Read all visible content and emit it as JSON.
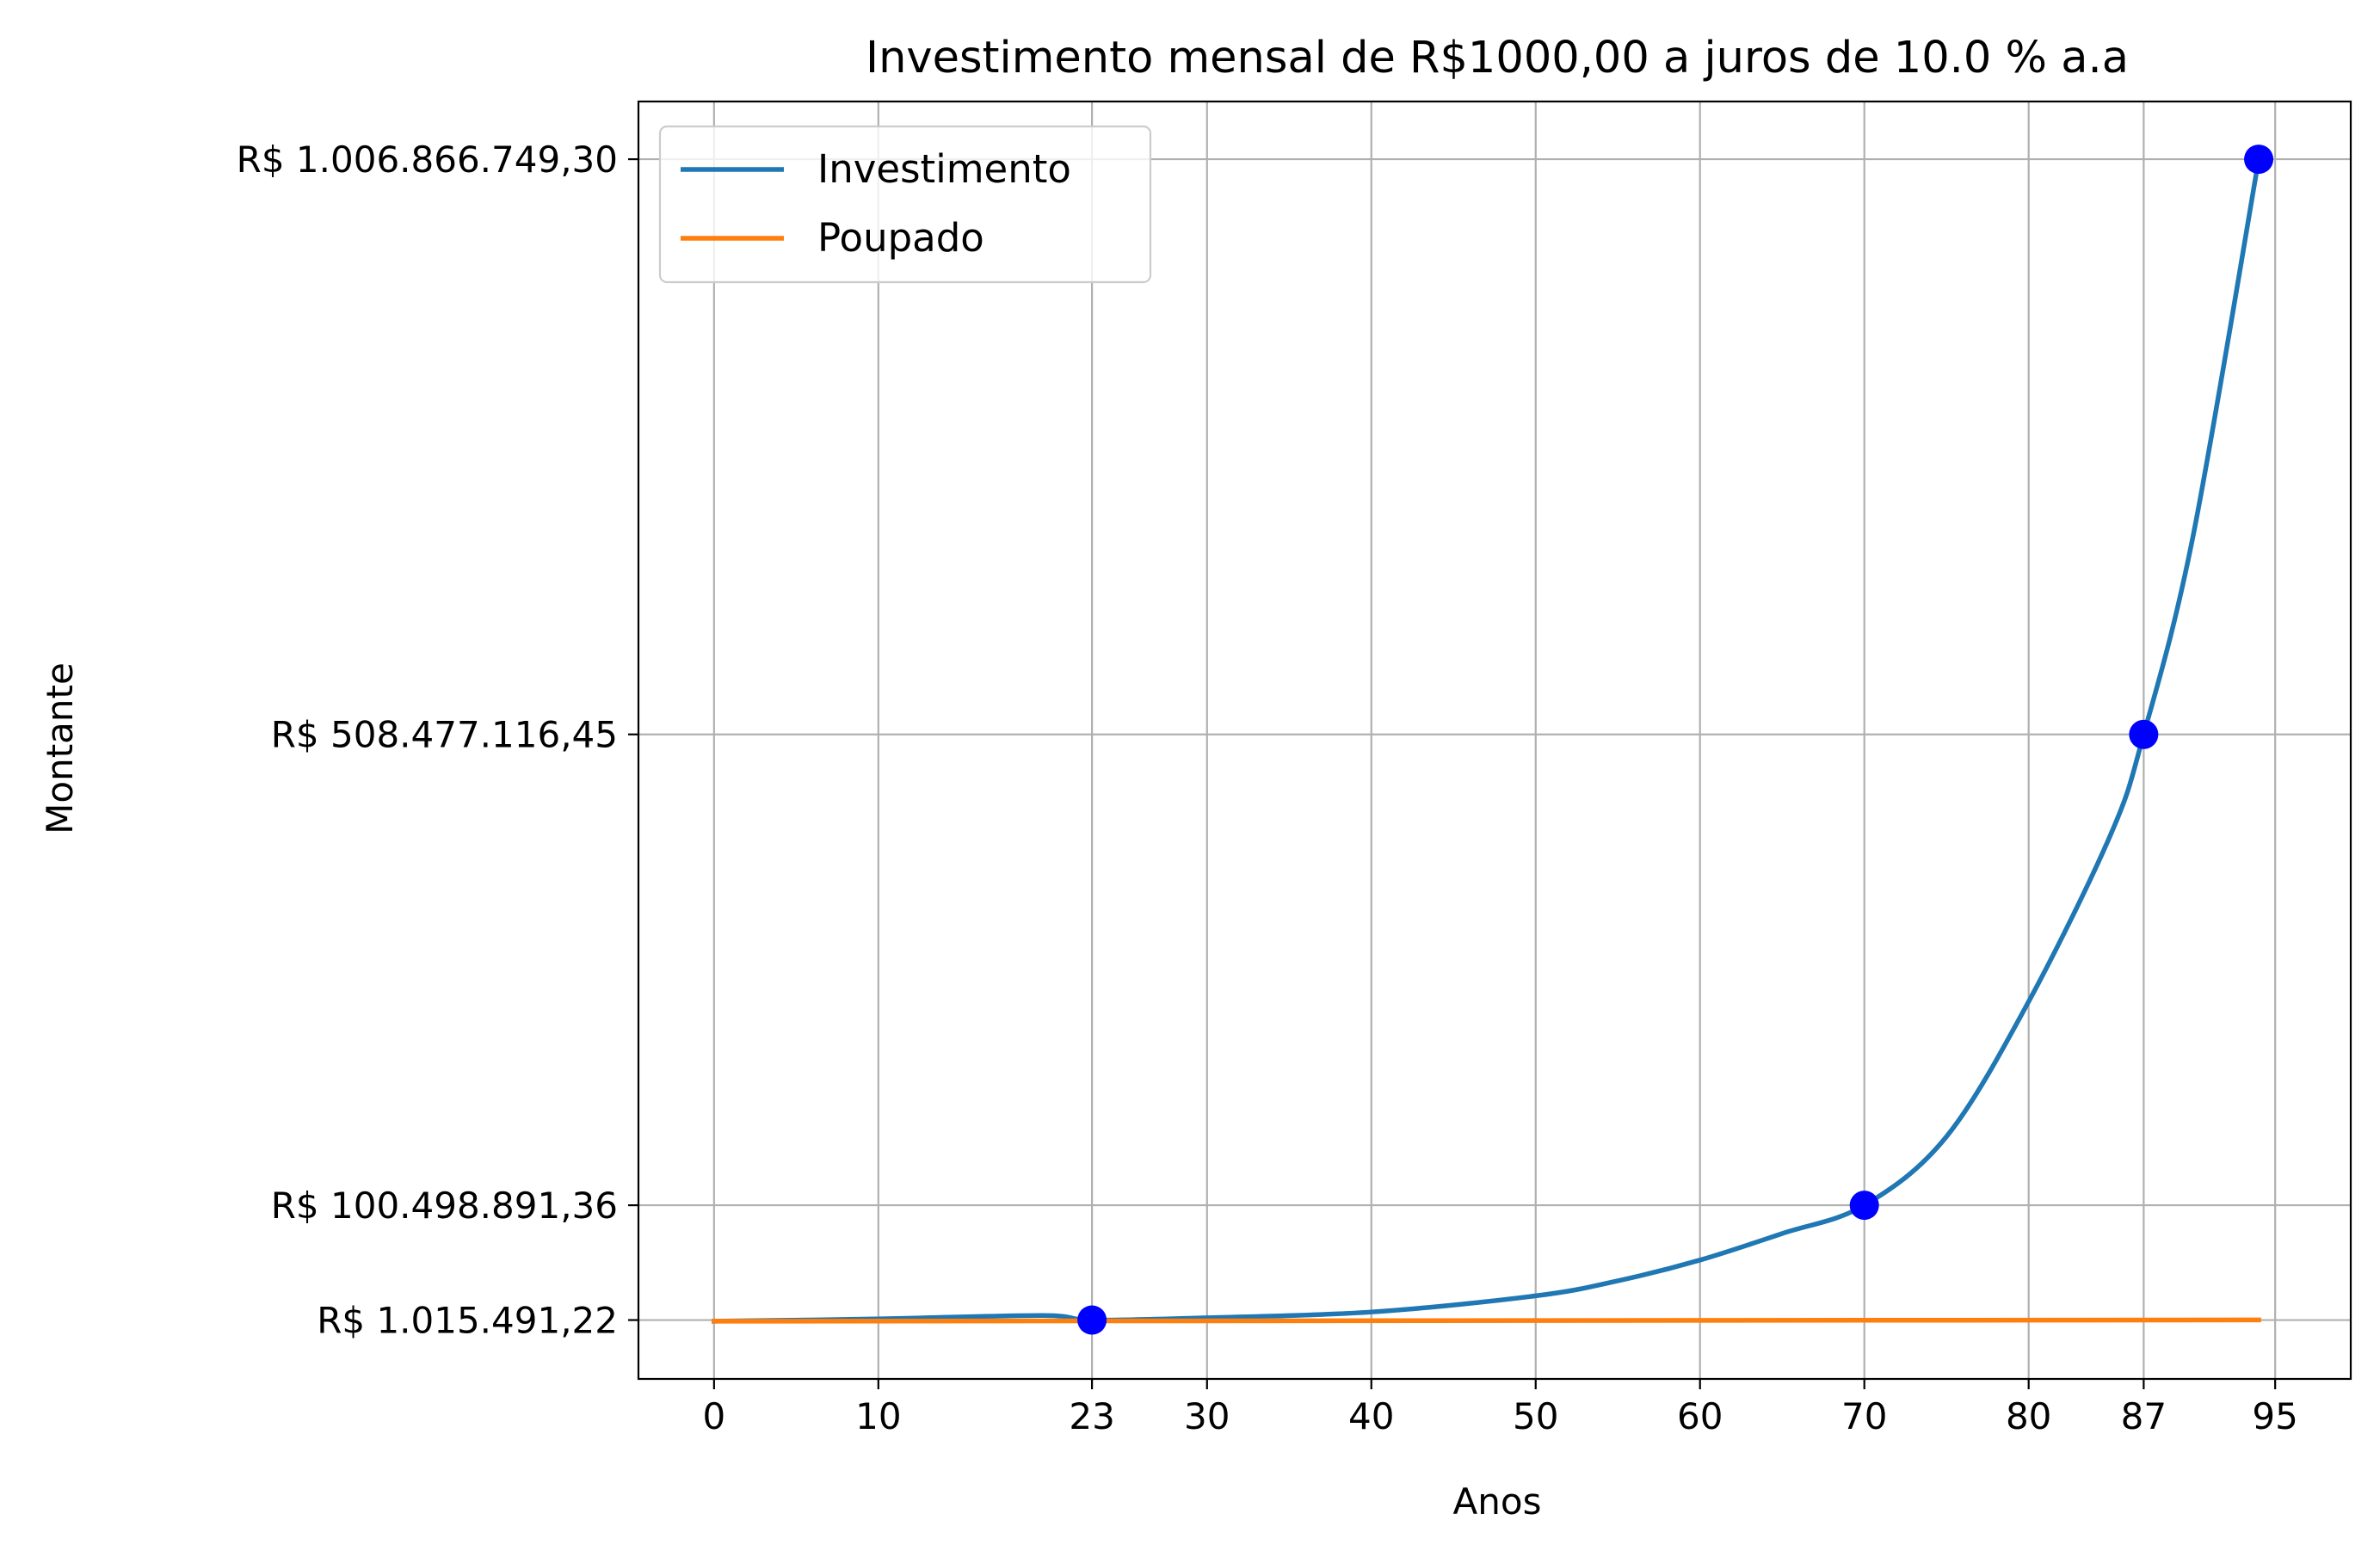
{
  "chart_data": {
    "type": "line",
    "title": "Investimento mensal de R$1000,00 a juros de 10.0 % a.a",
    "xlabel": "Anos",
    "ylabel": "Montante",
    "xlim": [
      -4.6,
      99.6
    ],
    "ylim": [
      -50000000,
      1056866749.3
    ],
    "grid": true,
    "legend_position": "upper-left",
    "x_ticks": [
      0,
      10,
      23,
      30,
      40,
      50,
      60,
      70,
      80,
      87,
      95
    ],
    "y_ticks": [
      {
        "value": 1015491.22,
        "label": "R$ 1.015.491,22"
      },
      {
        "value": 100498891.36,
        "label": "R$ 100.498.891,36"
      },
      {
        "value": 508477116.45,
        "label": "R$ 508.477.116,45"
      },
      {
        "value": 1006866749.3,
        "label": "R$ 1.006.866.749,30"
      }
    ],
    "series": [
      {
        "name": "Investimento",
        "color": "#1f77b4",
        "points": [
          [
            0,
            0
          ],
          [
            10,
            2000000
          ],
          [
            20,
            5000000
          ],
          [
            23,
            1015491.22
          ],
          [
            30,
            3000000
          ],
          [
            40,
            8000000
          ],
          [
            50,
            22000000
          ],
          [
            55,
            35000000
          ],
          [
            60,
            53000000
          ],
          [
            65,
            76000000
          ],
          [
            70,
            100498891.36
          ],
          [
            75,
            160000000
          ],
          [
            80,
            277000000
          ],
          [
            85,
            422000000
          ],
          [
            87,
            508477116.45
          ],
          [
            90,
            680000000
          ],
          [
            94,
            1006866749.3
          ]
        ]
      },
      {
        "name": "Poupado",
        "color": "#ff7f0e",
        "points": [
          [
            0,
            0
          ],
          [
            94,
            1128000
          ]
        ]
      }
    ],
    "markers": {
      "color": "#0000ff",
      "points": [
        [
          23,
          1015491.22
        ],
        [
          70,
          100498891.36
        ],
        [
          87,
          508477116.45
        ],
        [
          94,
          1006866749.3
        ]
      ]
    }
  }
}
